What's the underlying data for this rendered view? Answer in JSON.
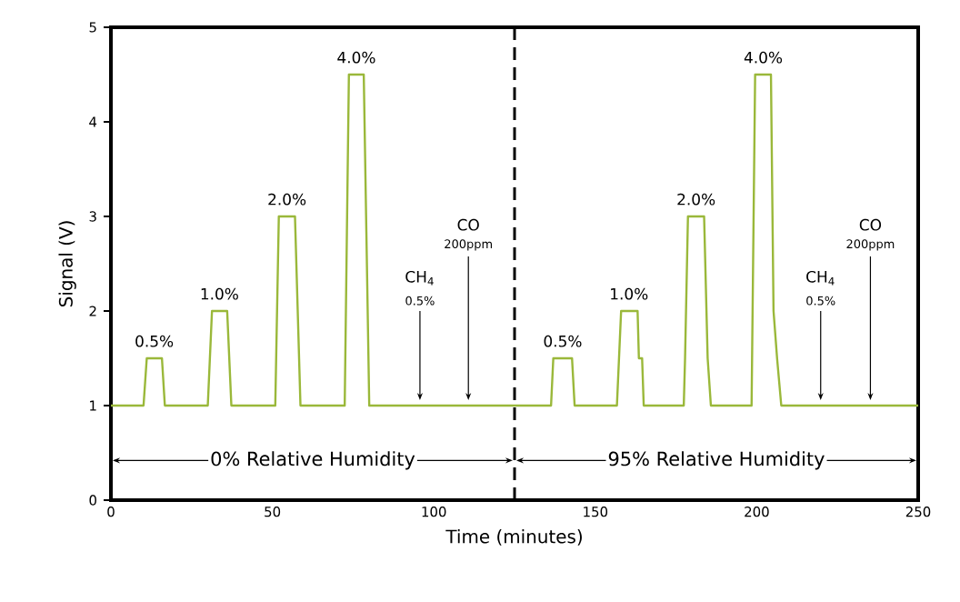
{
  "chart_data": {
    "type": "line",
    "xlabel": "Time (minutes)",
    "ylabel": "Signal (V)",
    "xlim": [
      0,
      250
    ],
    "ylim": [
      0,
      5
    ],
    "xticks": [
      0,
      50,
      100,
      150,
      200,
      250
    ],
    "yticks": [
      0,
      1,
      2,
      3,
      4,
      5
    ],
    "marker": "none",
    "line_style": "solid",
    "series": [
      {
        "color": "#9ab83a",
        "x": [
          0,
          10.1,
          11.1,
          15.8,
          16.7,
          30,
          31.3,
          36,
          37.3,
          50.9,
          52,
          57,
          58.7,
          72.4,
          73.7,
          78.3,
          80,
          136.3,
          137,
          142.8,
          143.6,
          156.7,
          158,
          163.1,
          163.5,
          164.5,
          165,
          177.4,
          177.8,
          178.7,
          183.7,
          184.8,
          185.8,
          198.4,
          199.5,
          204.4,
          205.2,
          206.3,
          207.6,
          250
        ],
        "values": [
          1,
          1,
          1.5,
          1.5,
          1,
          1,
          2,
          2,
          1,
          1,
          3,
          3,
          1,
          1,
          4.5,
          4.5,
          1,
          1,
          1.5,
          1.5,
          1,
          1,
          2,
          2,
          1.5,
          1.5,
          1,
          1,
          1.5,
          3,
          3,
          1.5,
          1,
          1,
          4.5,
          4.5,
          2,
          1.5,
          1,
          1
        ]
      }
    ],
    "ref_lines": [
      {
        "axis": "x",
        "value": 125,
        "line_style": "dashed",
        "color": "#000000"
      }
    ],
    "annotations": [
      {
        "text": "0.5%",
        "x": 13.4,
        "y": 1.5
      },
      {
        "text": "1.0%",
        "x": 33.6,
        "y": 2
      },
      {
        "text": "2.0%",
        "x": 54.5,
        "y": 3
      },
      {
        "text": "4.0%",
        "x": 76,
        "y": 4.5
      },
      "CH$_{4}$",
      {
        "text": "0.5%",
        "x": 95.7,
        "y": 1
      },
      "CO",
      {
        "text": "200ppm",
        "x": 110.7,
        "y": 1
      },
      {
        "text": "0.5%",
        "x": 139.9,
        "y": 1.5
      },
      {
        "text": "1.0%",
        "x": 160.4,
        "y": 2
      },
      {
        "text": "2.0%",
        "x": 181.2,
        "y": 3
      },
      {
        "text": "4.0%",
        "x": 202,
        "y": 4.5
      },
      "CH$_{4}$",
      {
        "text": "0.5%",
        "x": 219.8,
        "y": 1
      },
      "CO",
      {
        "text": "200ppm",
        "x": 235.2,
        "y": 1
      },
      "0% Relative Humidity",
      "95% Relative Humidity"
    ]
  }
}
